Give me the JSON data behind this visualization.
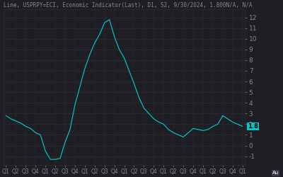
{
  "title": "Line, USPRPY=ECI, Economic Indicator(Last), D1, S2, 9/30/2024, 1.800N/A, N/A",
  "background_color": "#1e1e24",
  "chart_bg": "#1e1e24",
  "line_color": "#00c8c8",
  "label_color": "#888888",
  "grid_color": "#2d2d35",
  "current_value": 1.8,
  "current_label": "1.8",
  "x_labels": [
    "Q1",
    "Q2",
    "Q3",
    "Q4",
    "Q1",
    "Q2",
    "Q3",
    "Q4",
    "Q1",
    "Q2",
    "Q3",
    "Q4",
    "Q1",
    "Q2",
    "Q3",
    "Q4",
    "Q1",
    "Q2",
    "Q3",
    "Q4",
    "Q1",
    "Q2",
    "Q3",
    "Q4",
    "Q1"
  ],
  "y_ticks": [
    -1,
    0,
    1,
    2,
    3,
    4,
    5,
    6,
    7,
    8,
    9,
    10,
    11,
    12
  ],
  "ylim": [
    -1.8,
    12.8
  ],
  "ppi_data": [
    2.8,
    2.5,
    2.3,
    2.1,
    1.8,
    1.6,
    1.2,
    1.0,
    -0.5,
    -1.3,
    -1.3,
    -1.2,
    0.3,
    1.5,
    3.8,
    5.5,
    7.2,
    8.5,
    9.6,
    10.4,
    11.5,
    11.8,
    10.2,
    9.0,
    8.2,
    7.0,
    5.8,
    4.5,
    3.5,
    3.0,
    2.5,
    2.2,
    2.0,
    1.5,
    1.2,
    1.0,
    0.8,
    1.2,
    1.6,
    1.5,
    1.4,
    1.5,
    1.8,
    2.0,
    2.8,
    2.5,
    2.2,
    2.0,
    1.8
  ],
  "font_size_title": 5.5,
  "font_size_ticks": 6.5,
  "font_size_xlabel": 5.5
}
